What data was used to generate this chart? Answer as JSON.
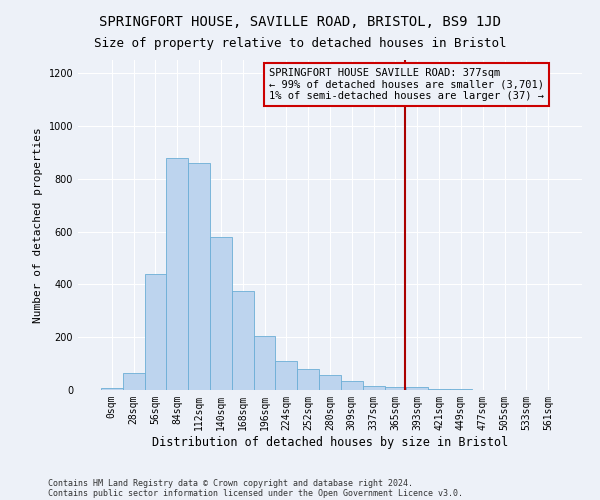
{
  "title": "SPRINGFORT HOUSE, SAVILLE ROAD, BRISTOL, BS9 1JD",
  "subtitle": "Size of property relative to detached houses in Bristol",
  "xlabel": "Distribution of detached houses by size in Bristol",
  "ylabel": "Number of detached properties",
  "footnote1": "Contains HM Land Registry data © Crown copyright and database right 2024.",
  "footnote2": "Contains public sector information licensed under the Open Government Licence v3.0.",
  "bar_labels": [
    "0sqm",
    "28sqm",
    "56sqm",
    "84sqm",
    "112sqm",
    "140sqm",
    "168sqm",
    "196sqm",
    "224sqm",
    "252sqm",
    "280sqm",
    "309sqm",
    "337sqm",
    "365sqm",
    "393sqm",
    "421sqm",
    "449sqm",
    "477sqm",
    "505sqm",
    "533sqm",
    "561sqm"
  ],
  "bar_values": [
    8,
    65,
    440,
    880,
    860,
    580,
    375,
    205,
    110,
    80,
    55,
    35,
    15,
    12,
    10,
    5,
    2,
    1,
    0,
    0,
    0
  ],
  "bar_color": "#bdd4ee",
  "bar_edge_color": "#6baed6",
  "vline_x": 13.45,
  "vertical_line_color": "#aa0000",
  "annotation_text": "SPRINGFORT HOUSE SAVILLE ROAD: 377sqm\n← 99% of detached houses are smaller (3,701)\n1% of semi-detached houses are larger (37) →",
  "annotation_box_color": "#cc0000",
  "ylim": [
    0,
    1250
  ],
  "yticks": [
    0,
    200,
    400,
    600,
    800,
    1000,
    1200
  ],
  "background_color": "#edf1f8",
  "grid_color": "#ffffff",
  "title_fontsize": 10,
  "subtitle_fontsize": 9,
  "xlabel_fontsize": 8.5,
  "ylabel_fontsize": 8,
  "tick_fontsize": 7,
  "annotation_fontsize": 7.5
}
